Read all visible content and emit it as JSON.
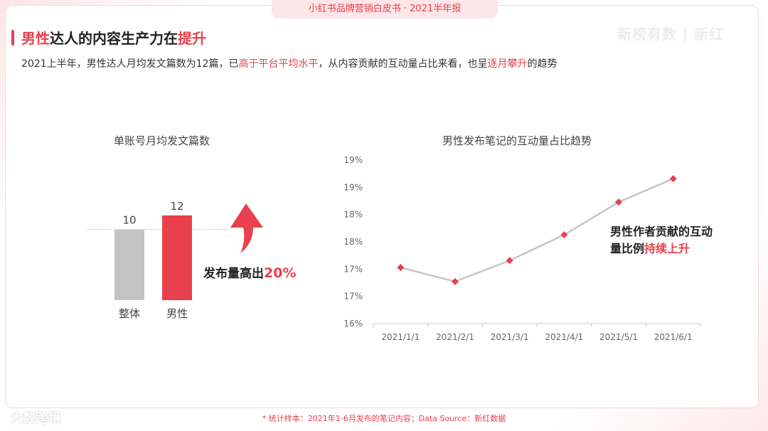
{
  "header": {
    "tab_text": "小红书品牌营销白皮书 · 2021半年报",
    "watermark": "新榜有数 | 新红"
  },
  "title": {
    "part1": "男性",
    "part2": "达人的内容生产力在",
    "part3": "提升"
  },
  "subtitle": {
    "p1": "2021上半年，男性达人月均发文篇数为12篇，已",
    "p2": "高于平台平均水平",
    "p3": "，从内容贡献的互动量占比来看，也呈",
    "p4": "逐月攀升",
    "p5": "的趋势"
  },
  "annotations": {
    "left_text": "发布量高出",
    "left_pct": "20%",
    "right_line1": "男性作者贡献的互动",
    "right_line2_a": "量比例",
    "right_line2_b": "持续上升"
  },
  "footnote": "* 统计样本：2021年1-6月发布的笔记内容；Data Source：新红数据",
  "brand": "大数跨境",
  "colors": {
    "accent": "#e8404d",
    "bar_gray": "#c3c3c3",
    "line_gray": "#c6c6c6"
  },
  "chart_data": [
    {
      "type": "bar",
      "title": "单账号月均发文篇数",
      "categories": [
        "整体",
        "男性"
      ],
      "values": [
        10,
        12
      ],
      "colors": [
        "#c3c3c3",
        "#e8404d"
      ],
      "ylim": [
        0,
        15
      ]
    },
    {
      "type": "line",
      "title": "男性发布笔记的互动量占比趋势",
      "x": [
        "2021/1/1",
        "2021/2/1",
        "2021/3/1",
        "2021/4/1",
        "2021/5/1",
        "2021/6/1"
      ],
      "values": [
        17.2,
        16.9,
        17.35,
        17.9,
        18.6,
        19.1
      ],
      "ytick_labels": [
        "16%",
        "17%",
        "17%",
        "18%",
        "18%",
        "19%",
        "19%"
      ],
      "ylim": [
        16.0,
        19.5
      ],
      "grid": false
    }
  ]
}
